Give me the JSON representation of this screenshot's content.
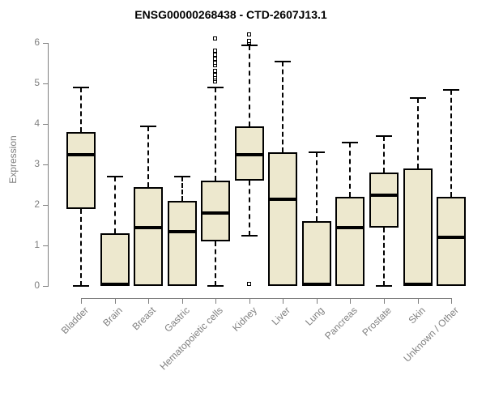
{
  "chart_data": {
    "type": "boxplot",
    "title": "ENSG00000268438 - CTD-2607J13.1",
    "ylabel": "Expression",
    "xlabel": "",
    "ylim": [
      0,
      6.2
    ],
    "yticks": [
      0,
      1,
      2,
      3,
      4,
      5,
      6
    ],
    "grid": false,
    "legend": "none",
    "categories": [
      "Bladder",
      "Brain",
      "Breast",
      "Gastric",
      "Hematopoietic cells",
      "Kidney",
      "Liver",
      "Lung",
      "Pancreas",
      "Prostate",
      "Skin",
      "Unknown / Other"
    ],
    "series": [
      {
        "name": "Bladder",
        "min": 0,
        "q1": 1.9,
        "median": 3.25,
        "q3": 3.8,
        "max": 4.9,
        "outliers": []
      },
      {
        "name": "Brain",
        "min": 0,
        "q1": 0,
        "median": 0.05,
        "q3": 1.3,
        "max": 2.7,
        "outliers": []
      },
      {
        "name": "Breast",
        "min": 0,
        "q1": 0,
        "median": 1.45,
        "q3": 2.45,
        "max": 3.95,
        "outliers": []
      },
      {
        "name": "Gastric",
        "min": 0,
        "q1": 0,
        "median": 1.35,
        "q3": 2.1,
        "max": 2.7,
        "outliers": []
      },
      {
        "name": "Hematopoietic cells",
        "min": 0,
        "q1": 1.1,
        "median": 1.8,
        "q3": 2.6,
        "max": 4.9,
        "outliers": [
          5.05,
          5.1,
          5.15,
          5.2,
          5.3,
          5.45,
          5.5,
          5.6,
          5.7,
          5.8,
          6.1
        ]
      },
      {
        "name": "Kidney",
        "min": 1.25,
        "q1": 2.6,
        "median": 3.25,
        "q3": 3.95,
        "max": 5.95,
        "outliers": [
          6.0,
          6.05,
          6.2,
          0.05
        ]
      },
      {
        "name": "Liver",
        "min": 0,
        "q1": 0,
        "median": 2.15,
        "q3": 3.3,
        "max": 5.55,
        "outliers": []
      },
      {
        "name": "Lung",
        "min": 0,
        "q1": 0,
        "median": 0.05,
        "q3": 1.6,
        "max": 3.3,
        "outliers": []
      },
      {
        "name": "Pancreas",
        "min": 0,
        "q1": 0,
        "median": 1.45,
        "q3": 2.2,
        "max": 3.55,
        "outliers": []
      },
      {
        "name": "Prostate",
        "min": 0,
        "q1": 1.45,
        "median": 2.25,
        "q3": 2.8,
        "max": 3.7,
        "outliers": []
      },
      {
        "name": "Skin",
        "min": 0,
        "q1": 0,
        "median": 0.05,
        "q3": 2.9,
        "max": 4.65,
        "outliers": []
      },
      {
        "name": "Unknown / Other",
        "min": 0,
        "q1": 0,
        "median": 1.2,
        "q3": 2.2,
        "max": 4.85,
        "outliers": []
      }
    ],
    "colors": {
      "box_fill": "#EDE8CE",
      "box_border": "#000000",
      "median": "#000000",
      "whisker": "#000000",
      "outlier_border": "#000000",
      "outlier_fill": "#FFFFFF",
      "axis": "#7F7F7F",
      "tick_label": "#808080",
      "title": "#000000",
      "background": "#FFFFFF"
    }
  }
}
